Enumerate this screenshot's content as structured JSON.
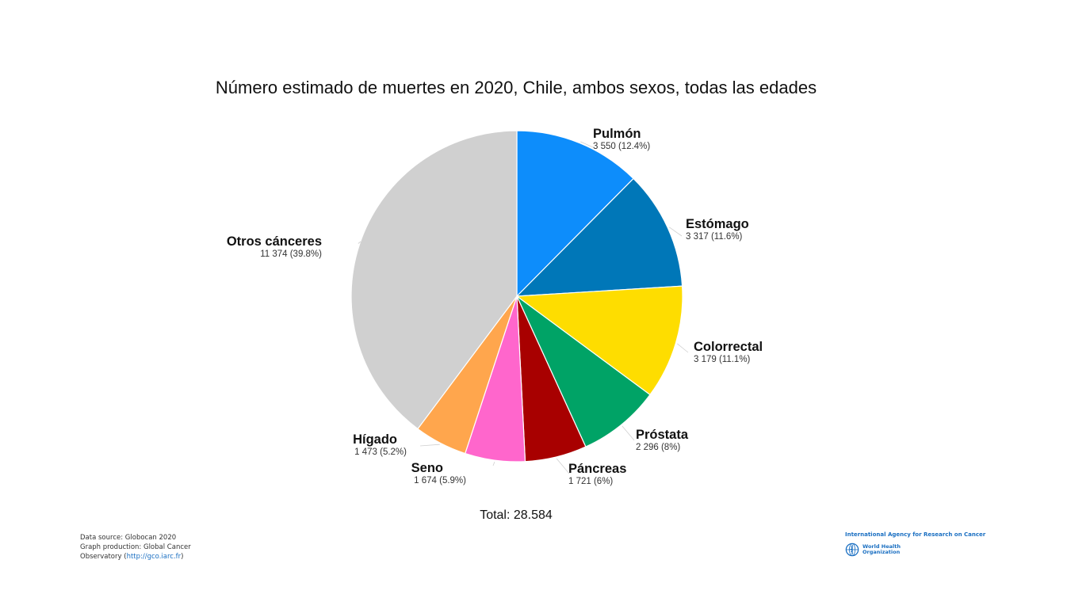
{
  "chart_data": {
    "type": "pie",
    "title": "Número estimado de muertes en 2020, Chile, ambos sexos, todas las edades",
    "slices": [
      {
        "label": "Pulmón",
        "value": 3550,
        "value_text": "3 550 (12.4%)",
        "percent": 12.4,
        "color": "#0d8dfb"
      },
      {
        "label": "Estómago",
        "value": 3317,
        "value_text": "3 317 (11.6%)",
        "percent": 11.6,
        "color": "#0077b8"
      },
      {
        "label": "Colorrectal",
        "value": 3179,
        "value_text": "3 179 (11.1%)",
        "percent": 11.1,
        "color": "#fedd00"
      },
      {
        "label": "Próstata",
        "value": 2296,
        "value_text": "2 296 (8%)",
        "percent": 8,
        "color": "#00a366"
      },
      {
        "label": "Páncreas",
        "value": 1721,
        "value_text": "1 721 (6%)",
        "percent": 6,
        "color": "#a80000"
      },
      {
        "label": "Seno",
        "value": 1674,
        "value_text": "1 674 (5.9%)",
        "percent": 5.9,
        "color": "#ff66cc"
      },
      {
        "label": "Hígado",
        "value": 1473,
        "value_text": "1 473 (5.2%)",
        "percent": 5.2,
        "color": "#ffa64d"
      },
      {
        "label": "Otros cánceres",
        "value": 11374,
        "value_text": "11 374 (39.8%)",
        "percent": 39.8,
        "color": "#d0d0d0"
      }
    ],
    "total_text": "Total: 28.584"
  },
  "footer": {
    "credits_line1": "Data source: Globocan 2020",
    "credits_line2": "Graph production: Global Cancer",
    "credits_line3_prefix": "Observatory (",
    "credits_link": "http://gco.iarc.fr",
    "credits_line3_suffix": ")",
    "iarc_name": "International Agency for Research on Cancer",
    "who_name": "World Health Organization"
  }
}
